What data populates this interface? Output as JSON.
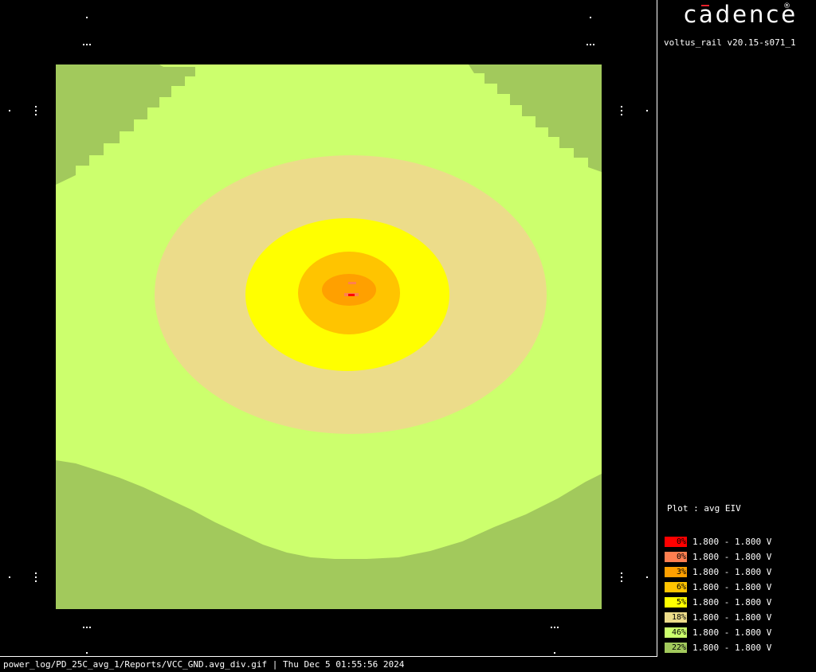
{
  "brand": {
    "logo_text": "cadence",
    "registered_mark": "®",
    "version": "voltus_rail v20.15-s071_1"
  },
  "plot": {
    "label": "Plot : avg EIV",
    "background_color": "#000000",
    "region_colors": {
      "corner_dark_green": "#a2c95c",
      "light_green": "#ccff6d",
      "tan": "#ecdc8a",
      "yellow": "#ffff00",
      "gold": "#ffc400",
      "orange": "#ffa000",
      "salmon": "#ff7f50",
      "red": "#ff0000"
    }
  },
  "legend": {
    "items": [
      {
        "percent": "0%",
        "range": "1.800 - 1.800 V",
        "color": "#ff0000"
      },
      {
        "percent": "0%",
        "range": "1.800 - 1.800 V",
        "color": "#ff7f50"
      },
      {
        "percent": "3%",
        "range": "1.800 - 1.800 V",
        "color": "#ffa000"
      },
      {
        "percent": "6%",
        "range": "1.800 - 1.800 V",
        "color": "#ffc400"
      },
      {
        "percent": "5%",
        "range": "1.800 - 1.800 V",
        "color": "#ffff00"
      },
      {
        "percent": "18%",
        "range": "1.800 - 1.800 V",
        "color": "#ecdc8a"
      },
      {
        "percent": "46%",
        "range": "1.800 - 1.800 V",
        "color": "#ccff6d"
      },
      {
        "percent": "22%",
        "range": "1.800 - 1.800 V",
        "color": "#a2c95c"
      }
    ]
  },
  "footer": {
    "status_text": "power_log/PD_25C_avg_1/Reports/VCC_GND.avg_div.gif | Thu Dec  5 01:55:56 2024"
  }
}
